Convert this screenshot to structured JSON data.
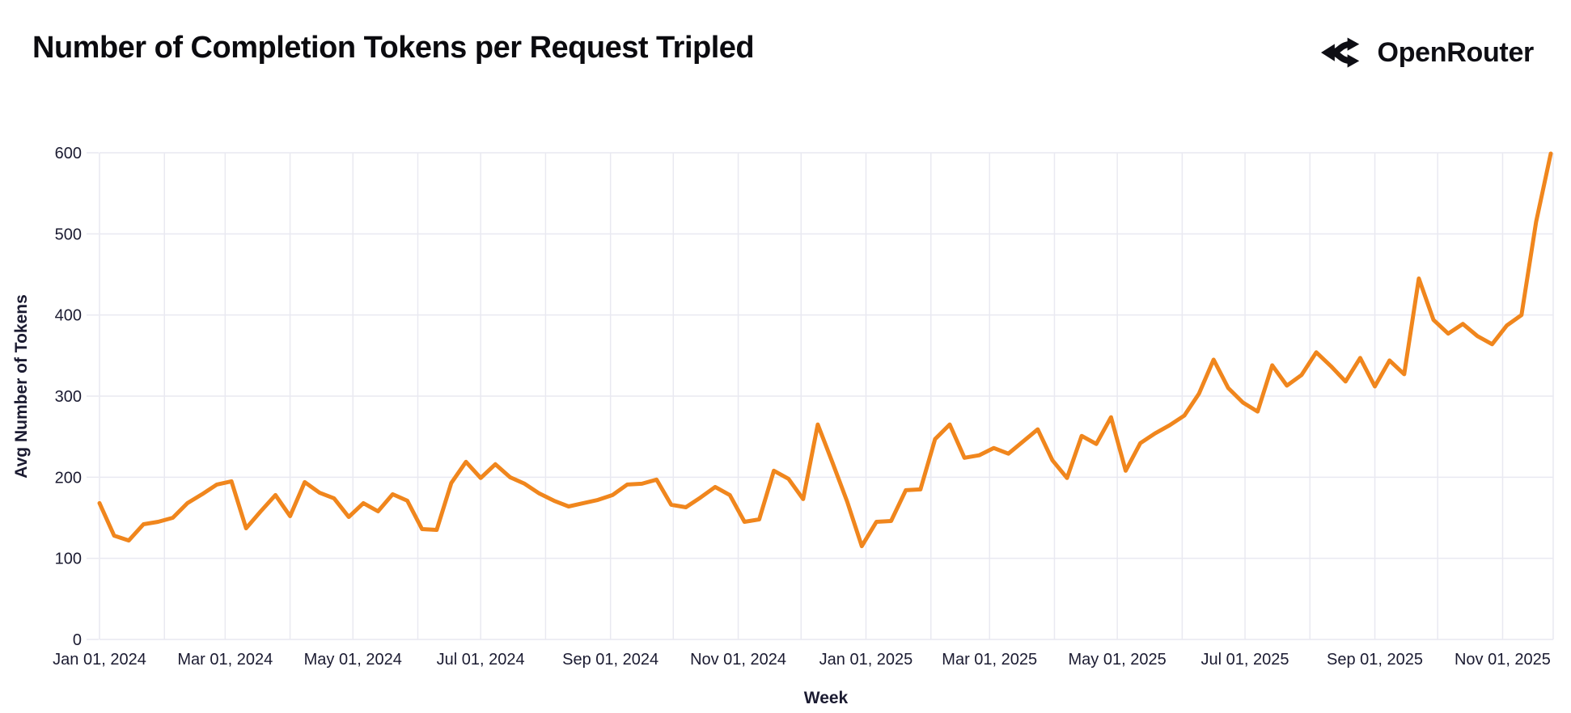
{
  "header": {
    "title": "Number of Completion Tokens per Request Tripled",
    "brand": "OpenRouter"
  },
  "colors": {
    "line": "#F0861D",
    "gridline": "#e9e9f1",
    "tick_label": "#1b1b31",
    "title_text": "#0b0b0f",
    "background": "#ffffff"
  },
  "chart_data": {
    "type": "line",
    "title": "Number of Completion Tokens per Request Tripled",
    "xlabel": "Week",
    "ylabel": "Avg Number of Tokens",
    "ylim": [
      0,
      600
    ],
    "grid": true,
    "legend": "none",
    "y_ticks": [
      0,
      100,
      200,
      300,
      400,
      500,
      600
    ],
    "x_ticks": [
      {
        "label": "Jan 01, 2024",
        "date": "2024-01-01"
      },
      {
        "label": "Mar 01, 2024",
        "date": "2024-03-01"
      },
      {
        "label": "May 01, 2024",
        "date": "2024-05-01"
      },
      {
        "label": "Jul 01, 2024",
        "date": "2024-07-01"
      },
      {
        "label": "Sep 01, 2024",
        "date": "2024-09-01"
      },
      {
        "label": "Nov 01, 2024",
        "date": "2024-11-01"
      },
      {
        "label": "Jan 01, 2025",
        "date": "2025-01-01"
      },
      {
        "label": "Mar 01, 2025",
        "date": "2025-03-01"
      },
      {
        "label": "May 01, 2025",
        "date": "2025-05-01"
      },
      {
        "label": "Jul 01, 2025",
        "date": "2025-07-01"
      },
      {
        "label": "Sep 01, 2025",
        "date": "2025-09-01"
      },
      {
        "label": "Nov 01, 2025",
        "date": "2025-11-01"
      }
    ],
    "series": [
      {
        "name": "Avg Number of Tokens",
        "start_date": "2024-01-01",
        "interval_days": 7,
        "values": [
          168,
          128,
          122,
          142,
          145,
          150,
          168,
          179,
          191,
          195,
          137,
          158,
          178,
          152,
          194,
          181,
          174,
          151,
          168,
          158,
          179,
          171,
          136,
          135,
          193,
          219,
          199,
          216,
          200,
          192,
          180,
          171,
          164,
          168,
          172,
          178,
          191,
          192,
          197,
          166,
          163,
          175,
          188,
          178,
          145,
          148,
          208,
          198,
          173,
          265,
          218,
          170,
          115,
          145,
          146,
          184,
          185,
          247,
          265,
          224,
          227,
          236,
          229,
          244,
          259,
          221,
          199,
          251,
          241,
          274,
          208,
          242,
          254,
          264,
          276,
          303,
          345,
          310,
          292,
          281,
          338,
          313,
          326,
          354,
          337,
          318,
          347,
          312,
          344,
          327,
          445,
          394,
          377,
          389,
          374,
          364,
          387,
          400,
          515,
          599
        ]
      }
    ]
  }
}
